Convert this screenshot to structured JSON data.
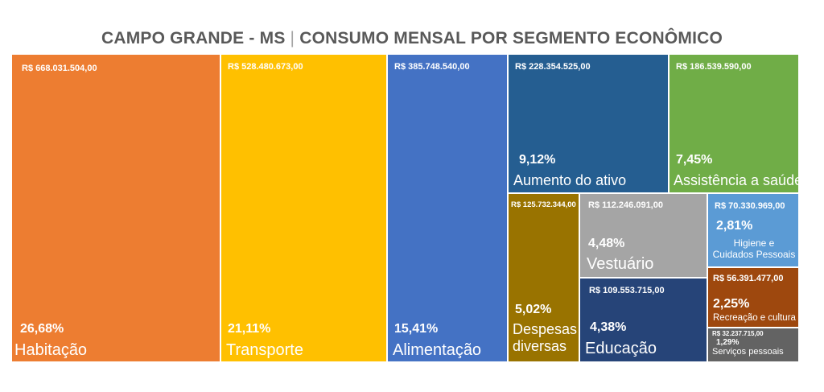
{
  "title": {
    "left": "CAMPO GRANDE - MS",
    "separator": "|",
    "right": "CONSUMO MENSAL POR SEGMENTO ECONÔMICO"
  },
  "chart_data": {
    "type": "treemap",
    "title": "CAMPO GRANDE - MS | CONSUMO MENSAL POR SEGMENTO ECONÔMICO",
    "items": [
      {
        "category": "Habitação",
        "value": 668031504.0,
        "value_label": "R$ 668.031.504,00",
        "percent": 26.68,
        "percent_label": "26,68%",
        "color": "#ed7d31"
      },
      {
        "category": "Transporte",
        "value": 528480673.0,
        "value_label": "R$ 528.480.673,00",
        "percent": 21.11,
        "percent_label": "21,11%",
        "color": "#ffc000"
      },
      {
        "category": "Alimentação",
        "value": 385748540.0,
        "value_label": "R$ 385.748.540,00",
        "percent": 15.41,
        "percent_label": "15,41%",
        "color": "#4472c4"
      },
      {
        "category": "Aumento do ativo",
        "value": 228354525.0,
        "value_label": "R$ 228.354.525,00",
        "percent": 9.12,
        "percent_label": "9,12%",
        "color": "#255e91"
      },
      {
        "category": "Assistência a saúde",
        "value": 186539590.0,
        "value_label": "R$ 186.539.590,00",
        "percent": 7.45,
        "percent_label": "7,45%",
        "color": "#70ad47"
      },
      {
        "category": "Despesas diversas",
        "value": 125732344.0,
        "value_label": "R$ 125.732.344,00",
        "percent": 5.02,
        "percent_label": "5,02%",
        "color": "#997300"
      },
      {
        "category": "Vestuário",
        "value": 112246091.0,
        "value_label": "R$ 112.246.091,00",
        "percent": 4.48,
        "percent_label": "4,48%",
        "color": "#a5a5a5"
      },
      {
        "category": "Higiene e Cuidados Pessoais",
        "value": 70330969.0,
        "value_label": "R$ 70.330.969,00",
        "percent": 2.81,
        "percent_label": "2,81%",
        "color": "#5b9bd5"
      },
      {
        "category": "Educação",
        "value": 109553715.0,
        "value_label": "R$ 109.553.715,00",
        "percent": 4.38,
        "percent_label": "4,38%",
        "color": "#264478"
      },
      {
        "category": "Recreação e cultura",
        "value": 56391477.0,
        "value_label": "R$ 56.391.477,00",
        "percent": 2.25,
        "percent_label": "2,25%",
        "color": "#9e480e"
      },
      {
        "category": "Serviços pessoais",
        "value": 32237715.0,
        "value_label": "R$ 32.237.715,00",
        "percent": 1.29,
        "percent_label": "1,29%",
        "color": "#636363"
      }
    ]
  }
}
